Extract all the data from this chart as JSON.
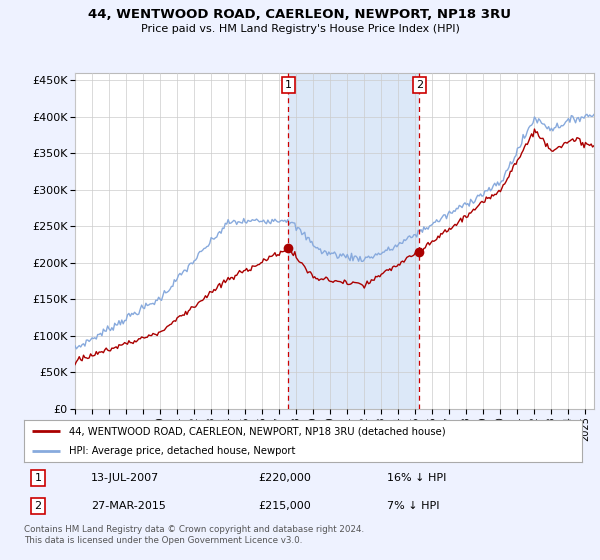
{
  "title": "44, WENTWOOD ROAD, CAERLEON, NEWPORT, NP18 3RU",
  "subtitle": "Price paid vs. HM Land Registry's House Price Index (HPI)",
  "legend_line1": "44, WENTWOOD ROAD, CAERLEON, NEWPORT, NP18 3RU (detached house)",
  "legend_line2": "HPI: Average price, detached house, Newport",
  "transaction1_date": "13-JUL-2007",
  "transaction1_price": "£220,000",
  "transaction1_hpi": "16% ↓ HPI",
  "transaction2_date": "27-MAR-2015",
  "transaction2_price": "£215,000",
  "transaction2_hpi": "7% ↓ HPI",
  "footer": "Contains HM Land Registry data © Crown copyright and database right 2024.\nThis data is licensed under the Open Government Licence v3.0.",
  "ylim": [
    0,
    460000
  ],
  "yticks": [
    0,
    50000,
    100000,
    150000,
    200000,
    250000,
    300000,
    350000,
    400000,
    450000
  ],
  "ytick_labels": [
    "£0",
    "£50K",
    "£100K",
    "£150K",
    "£200K",
    "£250K",
    "£300K",
    "£350K",
    "£400K",
    "£450K"
  ],
  "bg_color": "#eef2ff",
  "plot_bg_color": "#ffffff",
  "red_color": "#aa0000",
  "blue_color": "#88aadd",
  "shade_color": "#dce8f8",
  "marker1_x": 2007.54,
  "marker1_y": 220000,
  "marker2_x": 2015.24,
  "marker2_y": 215000,
  "xmin": 1995,
  "xmax": 2025.5
}
